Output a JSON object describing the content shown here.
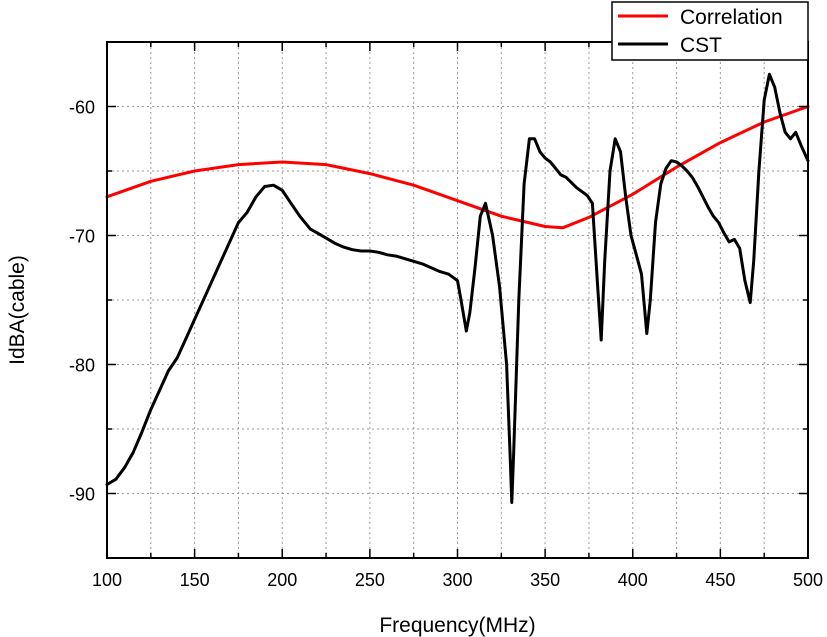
{
  "chart_data": {
    "type": "line",
    "xlabel": "Frequency(MHz)",
    "ylabel": "IdBA(cable)",
    "xlim": [
      100,
      500
    ],
    "ylim": [
      -95,
      -55
    ],
    "x_ticks": [
      100,
      150,
      200,
      250,
      300,
      350,
      400,
      450,
      500
    ],
    "x_tick_labels": [
      "100",
      "150",
      "200",
      "250",
      "300",
      "350",
      "400",
      "450",
      "500"
    ],
    "y_ticks": [
      -90,
      -80,
      -70,
      -60
    ],
    "y_tick_labels": [
      "-90",
      "-80",
      "-70",
      "-60"
    ],
    "grid": true,
    "legend_position": "top-right",
    "series": [
      {
        "name": "Correlation",
        "color": "#ff0000",
        "x": [
          100,
          125,
          150,
          175,
          200,
          225,
          250,
          275,
          300,
          325,
          350,
          360,
          375,
          400,
          425,
          450,
          475,
          500
        ],
        "y": [
          -67.0,
          -65.8,
          -65.0,
          -64.5,
          -64.3,
          -64.5,
          -65.2,
          -66.1,
          -67.3,
          -68.5,
          -69.3,
          -69.4,
          -68.6,
          -66.8,
          -64.7,
          -62.8,
          -61.2,
          -60.0
        ]
      },
      {
        "name": "CST",
        "color": "#000000",
        "x": [
          100,
          105,
          110,
          115,
          120,
          125,
          130,
          135,
          140,
          145,
          150,
          155,
          160,
          165,
          170,
          175,
          180,
          185,
          190,
          195,
          200,
          205,
          210,
          213,
          216,
          220,
          225,
          230,
          235,
          240,
          245,
          250,
          255,
          260,
          265,
          270,
          275,
          280,
          285,
          290,
          295,
          300,
          302,
          305,
          307,
          310,
          313,
          316,
          320,
          324,
          328,
          330,
          331,
          332,
          335,
          338,
          341,
          344,
          347,
          350,
          353,
          356,
          359,
          362,
          365,
          368,
          371,
          374,
          377,
          380,
          382,
          384,
          387,
          390,
          393,
          396,
          399,
          402,
          405,
          408,
          410,
          413,
          416,
          419,
          422,
          425,
          428,
          431,
          434,
          437,
          440,
          443,
          446,
          449,
          452,
          455,
          458,
          461,
          464,
          467,
          469,
          472,
          475,
          478,
          481,
          484,
          487,
          490,
          493,
          496,
          500
        ],
        "y": [
          -89.3,
          -88.9,
          -88.0,
          -86.8,
          -85.2,
          -83.5,
          -82.0,
          -80.5,
          -79.5,
          -78.0,
          -76.5,
          -75.0,
          -73.5,
          -72.0,
          -70.5,
          -69.0,
          -68.2,
          -67.0,
          -66.2,
          -66.1,
          -66.5,
          -67.5,
          -68.5,
          -69.0,
          -69.5,
          -69.8,
          -70.2,
          -70.6,
          -70.9,
          -71.1,
          -71.2,
          -71.2,
          -71.3,
          -71.5,
          -71.6,
          -71.8,
          -72.0,
          -72.2,
          -72.5,
          -72.8,
          -73.0,
          -73.5,
          -75.0,
          -77.4,
          -76.0,
          -72.5,
          -68.5,
          -67.5,
          -70.0,
          -74.0,
          -80.0,
          -87.0,
          -90.7,
          -87.0,
          -75.0,
          -66.0,
          -62.5,
          -62.5,
          -63.5,
          -64.0,
          -64.3,
          -64.8,
          -65.3,
          -65.5,
          -65.9,
          -66.3,
          -66.6,
          -66.9,
          -67.5,
          -74.0,
          -78.1,
          -72.0,
          -65.0,
          -62.5,
          -63.5,
          -67.0,
          -70.0,
          -71.5,
          -73.0,
          -77.6,
          -75.0,
          -69.0,
          -66.0,
          -64.8,
          -64.2,
          -64.3,
          -64.6,
          -65.0,
          -65.5,
          -66.2,
          -67.0,
          -67.8,
          -68.5,
          -69.0,
          -69.8,
          -70.5,
          -70.3,
          -71.0,
          -73.5,
          -75.2,
          -72.0,
          -65.0,
          -59.5,
          -57.5,
          -58.5,
          -60.5,
          -62.0,
          -62.5,
          -62.0,
          -63.0,
          -64.2
        ]
      }
    ]
  }
}
